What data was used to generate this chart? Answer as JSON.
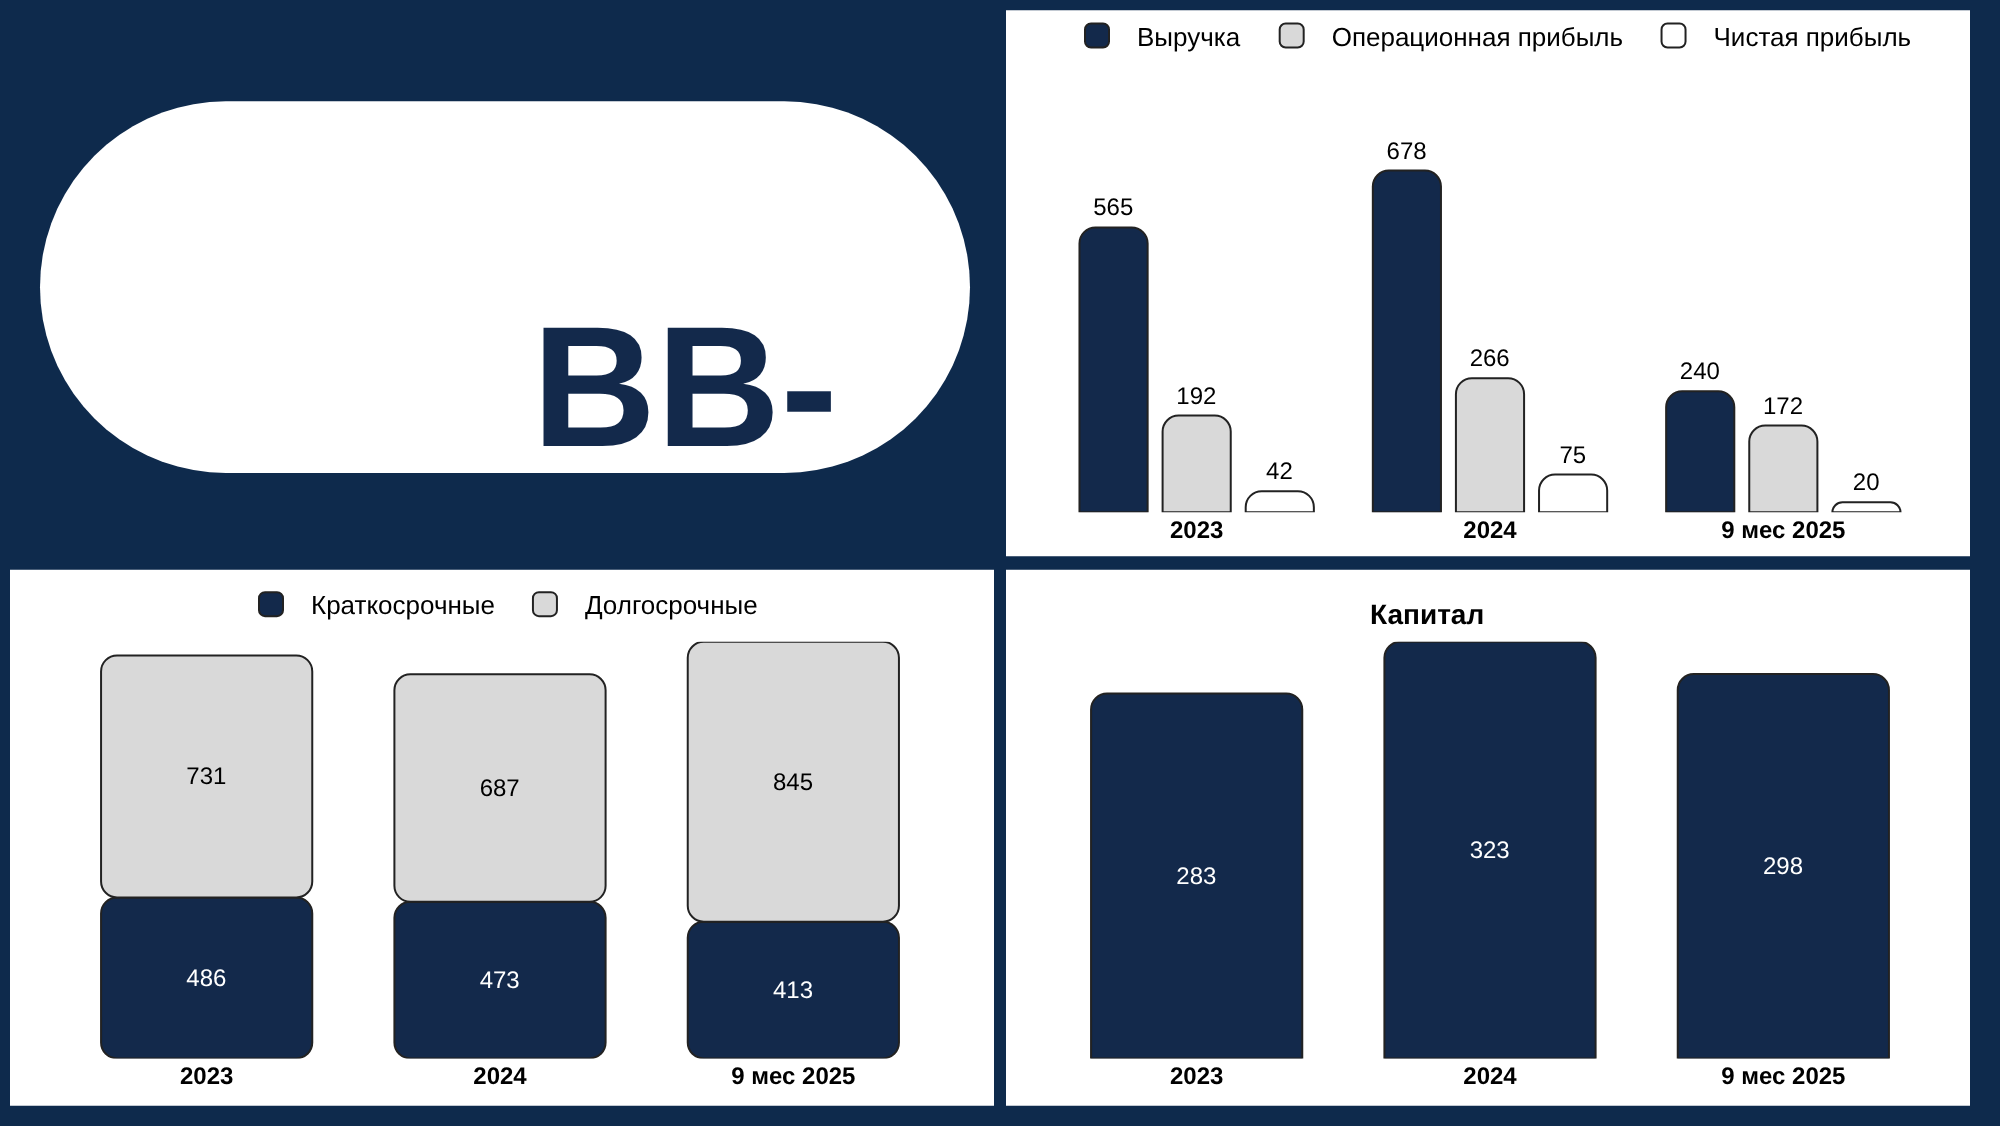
{
  "chart_data": [
    {
      "type": "other",
      "title": "BB-"
    },
    {
      "type": "bar",
      "categories": [
        "2023",
        "2024",
        "9 мес 2025"
      ],
      "series": [
        {
          "name": "Выручка",
          "color": "#13294b",
          "values": [
            565,
            678,
            240
          ]
        },
        {
          "name": "Операционная прибыль",
          "color": "#d9d9d9",
          "values": [
            192,
            266,
            172
          ]
        },
        {
          "name": "Чистая прибыль",
          "color": "#ffffff",
          "values": [
            42,
            75,
            20
          ]
        }
      ],
      "data_labels": true,
      "legend": "top"
    },
    {
      "type": "bar",
      "stacked": true,
      "categories": [
        "2023",
        "2024",
        "9 мес 2025"
      ],
      "series": [
        {
          "name": "Краткосрочные",
          "color": "#13294b",
          "values": [
            486,
            473,
            413
          ]
        },
        {
          "name": "Долгосрочные",
          "color": "#d9d9d9",
          "values": [
            731,
            687,
            845
          ]
        }
      ],
      "data_labels": true,
      "legend": "top"
    },
    {
      "type": "bar",
      "title": "Капитал",
      "categories": [
        "2023",
        "2024",
        "9 мес 2025"
      ],
      "values": [
        283,
        323,
        298
      ],
      "color": "#13294b",
      "data_labels": true
    }
  ]
}
